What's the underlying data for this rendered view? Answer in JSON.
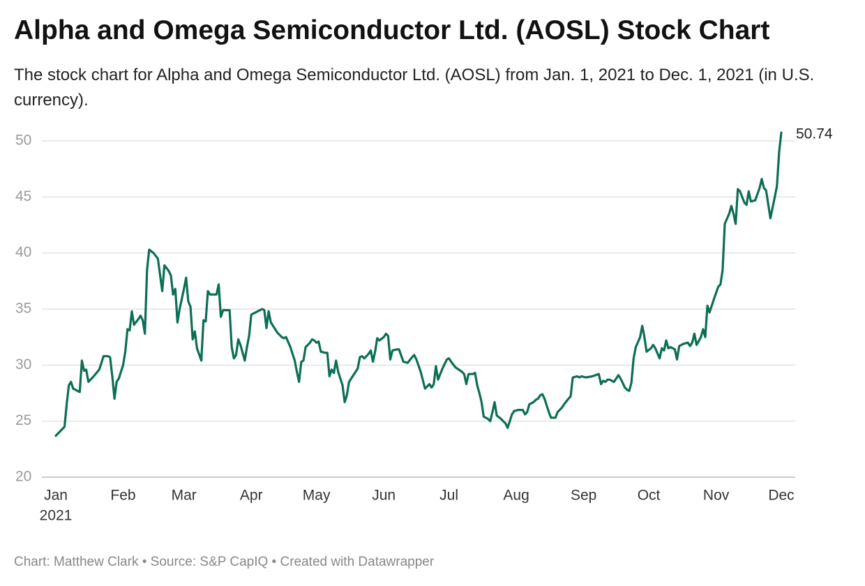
{
  "chart_data": {
    "type": "line",
    "title": "Alpha and Omega Semiconductor Ltd. (AOSL) Stock Chart",
    "subtitle": "The stock chart for Alpha and Omega Semiconductor Ltd. (AOSL) from Jan. 1, 2021 to Dec. 1, 2021 (in U.S. currency).",
    "source": "Chart: Matthew Clark • Source: S&P CapIQ • Created with Datawrapper",
    "year_label": "2021",
    "color": "#0b6e55",
    "grid": true,
    "xlim": [
      0,
      334
    ],
    "xticks": [
      {
        "value": 0,
        "label": "Jan"
      },
      {
        "value": 31,
        "label": "Feb"
      },
      {
        "value": 59,
        "label": "Mar"
      },
      {
        "value": 90,
        "label": "Apr"
      },
      {
        "value": 120,
        "label": "May"
      },
      {
        "value": 151,
        "label": "Jun"
      },
      {
        "value": 181,
        "label": "Jul"
      },
      {
        "value": 212,
        "label": "Aug"
      },
      {
        "value": 243,
        "label": "Sep"
      },
      {
        "value": 273,
        "label": "Oct"
      },
      {
        "value": 304,
        "label": "Nov"
      },
      {
        "value": 334,
        "label": "Dec"
      }
    ],
    "ylim": [
      20,
      50
    ],
    "yticks": [
      20,
      25,
      30,
      35,
      40,
      45,
      50
    ],
    "x": [
      0,
      4,
      5,
      6,
      7,
      8,
      11,
      12,
      13,
      14,
      15,
      17,
      20,
      21,
      22,
      24,
      25,
      26,
      27,
      28,
      29,
      31,
      32,
      33,
      34,
      35,
      36,
      38,
      39,
      40,
      41,
      42,
      43,
      45,
      47,
      49,
      50,
      52,
      53,
      54,
      55,
      56,
      57,
      59,
      60,
      61,
      62,
      63,
      64,
      65,
      67,
      68,
      69,
      70,
      71,
      74,
      75,
      76,
      77,
      80,
      81,
      82,
      83,
      84,
      85,
      87,
      88,
      89,
      90,
      93,
      95,
      96,
      97,
      98,
      99,
      102,
      104,
      105,
      106,
      108,
      110,
      111,
      112,
      113,
      114,
      115,
      117,
      118,
      119,
      120,
      121,
      122,
      124,
      125,
      126,
      127,
      128,
      129,
      130,
      132,
      133,
      134,
      135,
      137,
      139,
      140,
      141,
      142,
      144,
      145,
      146,
      147,
      148,
      149,
      151,
      152,
      153,
      154,
      155,
      157,
      158,
      160,
      162,
      164,
      165,
      166,
      168,
      170,
      171,
      172,
      173,
      174,
      175,
      176,
      177,
      178,
      180,
      181,
      182,
      184,
      187,
      188,
      189,
      190,
      192,
      193,
      194,
      195,
      196,
      197,
      199,
      200,
      201,
      202,
      203,
      205,
      206,
      207,
      208,
      209,
      210,
      211,
      213,
      215,
      216,
      217,
      218,
      220,
      221,
      222,
      223,
      224,
      225,
      226,
      227,
      228,
      230,
      231,
      233,
      234,
      236,
      237,
      238,
      240,
      241,
      242,
      244,
      247,
      250,
      251,
      252,
      253,
      254,
      255,
      257,
      259,
      260,
      262,
      263,
      264,
      265,
      266,
      267,
      269,
      270,
      271,
      272,
      274,
      275,
      276,
      278,
      279,
      280,
      281,
      282,
      283,
      285,
      286,
      287,
      289,
      291,
      292,
      293,
      294,
      295,
      297,
      298,
      299,
      300,
      301,
      303,
      305,
      306,
      307,
      308,
      310,
      311,
      312,
      313,
      314,
      315,
      317,
      318,
      319,
      320,
      322,
      324,
      325,
      326,
      327,
      329,
      331,
      332,
      333,
      334
    ],
    "values": [
      23.7,
      24.5,
      26.5,
      28.2,
      28.5,
      27.9,
      27.6,
      30.4,
      29.5,
      29.6,
      28.5,
      28.9,
      29.6,
      30.2,
      30.8,
      30.8,
      30.7,
      29.0,
      27.0,
      28.5,
      28.8,
      30.0,
      31.2,
      33.2,
      33.1,
      34.8,
      33.6,
      34.1,
      34.4,
      34.0,
      32.8,
      38.5,
      40.3,
      40.0,
      39.5,
      36.6,
      38.9,
      38.4,
      38.0,
      36.3,
      36.8,
      33.8,
      35.0,
      36.8,
      37.8,
      35.7,
      35.2,
      32.3,
      33.0,
      31.5,
      30.4,
      34.0,
      33.9,
      36.6,
      36.3,
      36.3,
      37.2,
      34.3,
      34.9,
      34.9,
      31.6,
      30.6,
      30.9,
      32.3,
      31.8,
      30.4,
      31.6,
      32.6,
      34.5,
      34.8,
      35.0,
      34.9,
      33.3,
      34.8,
      33.8,
      32.9,
      32.5,
      32.4,
      32.5,
      31.6,
      30.4,
      29.4,
      28.5,
      30.3,
      30.4,
      31.6,
      32.0,
      32.3,
      32.2,
      32.0,
      32.1,
      31.2,
      31.1,
      31.1,
      29.0,
      29.6,
      29.3,
      30.4,
      29.4,
      28.2,
      26.7,
      27.3,
      28.5,
      29.1,
      29.7,
      30.7,
      30.8,
      30.6,
      31.0,
      31.3,
      30.3,
      31.2,
      32.4,
      32.2,
      32.5,
      32.8,
      32.6,
      30.5,
      31.3,
      31.4,
      31.4,
      30.3,
      30.2,
      30.7,
      30.9,
      30.5,
      29.4,
      27.9,
      28.1,
      28.3,
      28.0,
      28.3,
      29.9,
      28.7,
      29.2,
      29.7,
      30.5,
      30.6,
      30.3,
      29.8,
      29.4,
      29.2,
      28.3,
      29.2,
      29.2,
      29.3,
      28.2,
      27.5,
      26.7,
      25.4,
      25.2,
      25.0,
      25.8,
      26.7,
      25.5,
      25.2,
      25.0,
      24.8,
      24.4,
      25.0,
      25.6,
      25.9,
      26.0,
      26.0,
      25.6,
      25.8,
      26.5,
      26.7,
      26.9,
      27.0,
      27.3,
      27.4,
      27.0,
      26.4,
      25.8,
      25.3,
      25.3,
      25.8,
      26.2,
      26.5,
      27.0,
      27.2,
      28.9,
      29.0,
      28.9,
      29.0,
      28.9,
      29.0,
      29.2,
      28.3,
      28.6,
      28.5,
      28.7,
      28.7,
      28.5,
      29.1,
      28.8,
      28.0,
      27.8,
      27.7,
      28.4,
      30.6,
      31.6,
      32.5,
      33.5,
      32.5,
      31.2,
      31.5,
      31.8,
      31.5,
      30.6,
      31.5,
      31.3,
      32.2,
      31.5,
      31.6,
      31.4,
      30.5,
      31.7,
      31.9,
      32.0,
      31.7,
      32.0,
      32.8,
      31.8,
      32.5,
      33.2,
      32.5,
      35.3,
      34.7,
      35.9,
      37.0,
      37.2,
      38.5,
      42.6,
      43.5,
      44.2,
      43.5,
      42.6,
      45.7,
      45.5,
      44.5,
      44.3,
      45.5,
      44.6,
      44.7,
      45.8,
      46.6,
      45.8,
      45.6,
      43.1,
      45.0,
      46.0,
      49.0,
      50.74
    ]
  }
}
